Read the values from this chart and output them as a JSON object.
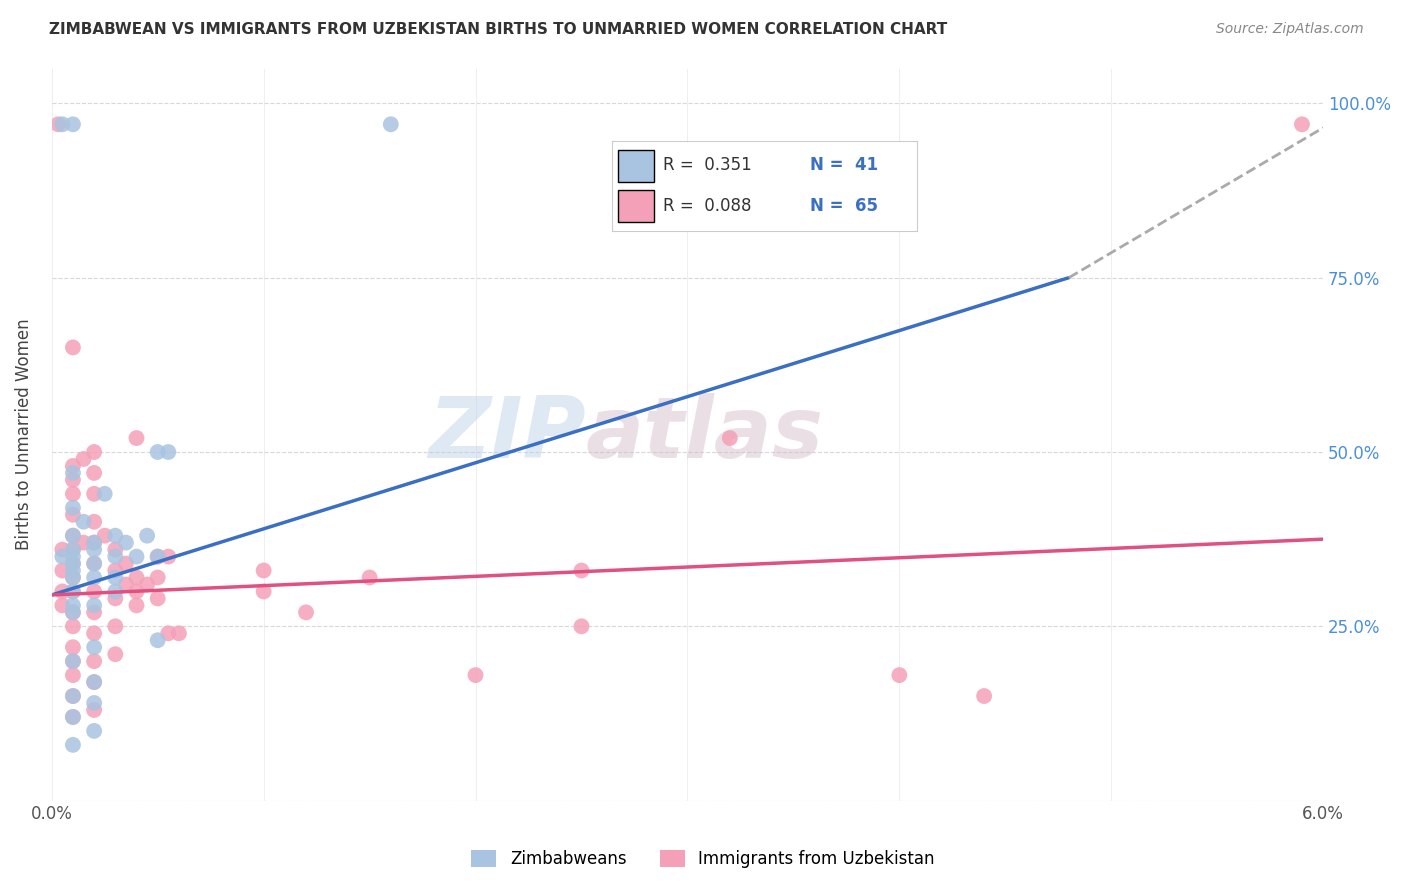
{
  "title": "ZIMBABWEAN VS IMMIGRANTS FROM UZBEKISTAN BIRTHS TO UNMARRIED WOMEN CORRELATION CHART",
  "source": "Source: ZipAtlas.com",
  "ylabel": "Births to Unmarried Women",
  "xmin": 0.0,
  "xmax": 0.06,
  "ymin": 0.0,
  "ymax": 1.05,
  "yticks": [
    0.0,
    0.25,
    0.5,
    0.75,
    1.0
  ],
  "ytick_labels": [
    "",
    "25.0%",
    "50.0%",
    "75.0%",
    "100.0%"
  ],
  "xticks": [
    0.0,
    0.01,
    0.02,
    0.03,
    0.04,
    0.05,
    0.06
  ],
  "watermark_zip": "ZIP",
  "watermark_atlas": "atlas",
  "legend_blue_r": "R =  0.351",
  "legend_blue_n": "N =  41",
  "legend_pink_r": "R =  0.088",
  "legend_pink_n": "N =  65",
  "blue_color": "#a8c4e0",
  "pink_color": "#f4a0b8",
  "blue_line_color": "#3a6fc4",
  "pink_line_color": "#e05080",
  "blue_scatter": [
    [
      0.0005,
      0.97
    ],
    [
      0.0005,
      0.35
    ],
    [
      0.001,
      0.97
    ],
    [
      0.001,
      0.47
    ],
    [
      0.001,
      0.42
    ],
    [
      0.001,
      0.38
    ],
    [
      0.001,
      0.36
    ],
    [
      0.001,
      0.35
    ],
    [
      0.001,
      0.34
    ],
    [
      0.001,
      0.33
    ],
    [
      0.001,
      0.32
    ],
    [
      0.001,
      0.3
    ],
    [
      0.001,
      0.28
    ],
    [
      0.001,
      0.27
    ],
    [
      0.001,
      0.2
    ],
    [
      0.001,
      0.15
    ],
    [
      0.001,
      0.12
    ],
    [
      0.001,
      0.08
    ],
    [
      0.0015,
      0.4
    ],
    [
      0.002,
      0.37
    ],
    [
      0.002,
      0.36
    ],
    [
      0.002,
      0.34
    ],
    [
      0.002,
      0.32
    ],
    [
      0.002,
      0.28
    ],
    [
      0.002,
      0.22
    ],
    [
      0.002,
      0.17
    ],
    [
      0.002,
      0.14
    ],
    [
      0.002,
      0.1
    ],
    [
      0.0025,
      0.44
    ],
    [
      0.003,
      0.38
    ],
    [
      0.003,
      0.35
    ],
    [
      0.003,
      0.32
    ],
    [
      0.003,
      0.3
    ],
    [
      0.0035,
      0.37
    ],
    [
      0.004,
      0.35
    ],
    [
      0.0045,
      0.38
    ],
    [
      0.005,
      0.5
    ],
    [
      0.005,
      0.35
    ],
    [
      0.005,
      0.23
    ],
    [
      0.0055,
      0.5
    ],
    [
      0.016,
      0.97
    ]
  ],
  "pink_scatter": [
    [
      0.0003,
      0.97
    ],
    [
      0.0005,
      0.36
    ],
    [
      0.0005,
      0.33
    ],
    [
      0.0005,
      0.3
    ],
    [
      0.0005,
      0.28
    ],
    [
      0.001,
      0.65
    ],
    [
      0.001,
      0.48
    ],
    [
      0.001,
      0.46
    ],
    [
      0.001,
      0.44
    ],
    [
      0.001,
      0.41
    ],
    [
      0.001,
      0.38
    ],
    [
      0.001,
      0.36
    ],
    [
      0.001,
      0.34
    ],
    [
      0.001,
      0.32
    ],
    [
      0.001,
      0.3
    ],
    [
      0.001,
      0.27
    ],
    [
      0.001,
      0.25
    ],
    [
      0.001,
      0.22
    ],
    [
      0.001,
      0.2
    ],
    [
      0.001,
      0.18
    ],
    [
      0.001,
      0.15
    ],
    [
      0.001,
      0.12
    ],
    [
      0.0015,
      0.49
    ],
    [
      0.0015,
      0.37
    ],
    [
      0.002,
      0.5
    ],
    [
      0.002,
      0.47
    ],
    [
      0.002,
      0.44
    ],
    [
      0.002,
      0.4
    ],
    [
      0.002,
      0.37
    ],
    [
      0.002,
      0.34
    ],
    [
      0.002,
      0.3
    ],
    [
      0.002,
      0.27
    ],
    [
      0.002,
      0.24
    ],
    [
      0.002,
      0.2
    ],
    [
      0.002,
      0.17
    ],
    [
      0.002,
      0.13
    ],
    [
      0.0025,
      0.38
    ],
    [
      0.003,
      0.36
    ],
    [
      0.003,
      0.33
    ],
    [
      0.003,
      0.29
    ],
    [
      0.003,
      0.25
    ],
    [
      0.003,
      0.21
    ],
    [
      0.0035,
      0.34
    ],
    [
      0.0035,
      0.31
    ],
    [
      0.004,
      0.52
    ],
    [
      0.004,
      0.32
    ],
    [
      0.004,
      0.3
    ],
    [
      0.004,
      0.28
    ],
    [
      0.0045,
      0.31
    ],
    [
      0.005,
      0.35
    ],
    [
      0.005,
      0.32
    ],
    [
      0.005,
      0.29
    ],
    [
      0.0055,
      0.35
    ],
    [
      0.0055,
      0.24
    ],
    [
      0.006,
      0.24
    ],
    [
      0.01,
      0.33
    ],
    [
      0.01,
      0.3
    ],
    [
      0.012,
      0.27
    ],
    [
      0.015,
      0.32
    ],
    [
      0.02,
      0.18
    ],
    [
      0.025,
      0.33
    ],
    [
      0.025,
      0.25
    ],
    [
      0.032,
      0.52
    ],
    [
      0.04,
      0.18
    ],
    [
      0.044,
      0.15
    ],
    [
      0.059,
      0.97
    ]
  ],
  "blue_line_solid": [
    [
      0.0,
      0.295
    ],
    [
      0.048,
      0.75
    ]
  ],
  "blue_line_dashed": [
    [
      0.048,
      0.75
    ],
    [
      0.06,
      0.965
    ]
  ],
  "pink_line": [
    [
      0.0,
      0.295
    ],
    [
      0.06,
      0.375
    ]
  ],
  "background_color": "#ffffff",
  "grid_color": "#d8d8d8",
  "bottom_legend_blue": "Zimbabweans",
  "bottom_legend_pink": "Immigrants from Uzbekistan"
}
